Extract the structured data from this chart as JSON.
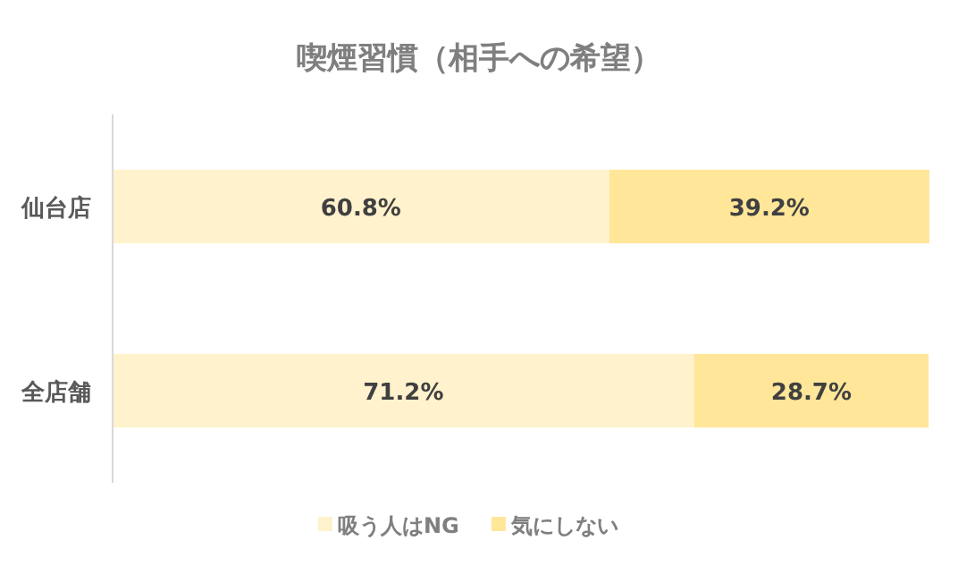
{
  "chart_data": {
    "type": "bar",
    "orientation": "horizontal",
    "stacked": true,
    "title": "喫煙習慣（相手への希望）",
    "categories": [
      "仙台店",
      "全店舗"
    ],
    "series": [
      {
        "name": "吸う人はNG",
        "color": "#fff2cc",
        "values": [
          60.8,
          71.2
        ],
        "value_labels": [
          "60.8%",
          "71.2%"
        ]
      },
      {
        "name": "気にしない",
        "color": "#ffe699",
        "values": [
          39.2,
          28.7
        ],
        "value_labels": [
          "39.2%",
          "28.7%"
        ]
      }
    ],
    "legend": "bottom",
    "grid": false
  }
}
